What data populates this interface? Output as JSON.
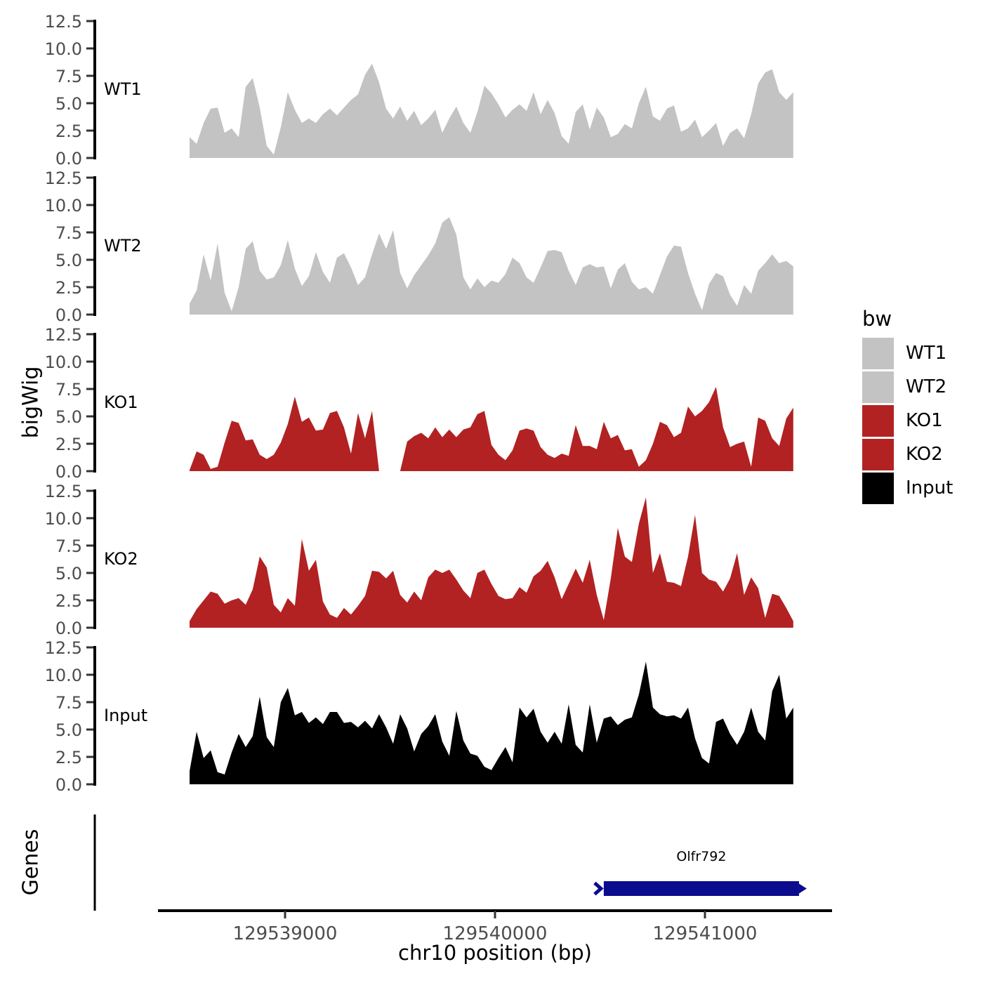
{
  "legend": {
    "title": "bw",
    "items": [
      {
        "label": "WT1",
        "color": "#c3c3c3"
      },
      {
        "label": "WT2",
        "color": "#c3c3c3"
      },
      {
        "label": "KO1",
        "color": "#b22222"
      },
      {
        "label": "KO2",
        "color": "#b22222"
      },
      {
        "label": "Input",
        "color": "#000000"
      }
    ]
  },
  "chart_data": {
    "type": "area",
    "title": "",
    "xlabel": "chr10 position (bp)",
    "ylabel": "bigWig",
    "x_axis": {
      "ticks": [
        129539000,
        129540000,
        129541000
      ],
      "tick_labels": [
        "129539000",
        "129540000",
        "129541000"
      ],
      "range_bp": [
        129538400,
        129541610
      ]
    },
    "y_axis": {
      "ticks": [
        0,
        2.5,
        5,
        7.5,
        10,
        12.5
      ],
      "tick_labels": [
        "0.0",
        "2.5",
        "5.0",
        "7.5",
        "10.0",
        "12.5"
      ],
      "range": [
        0,
        12.5
      ]
    },
    "x_start_bp": 129538545,
    "x_step_bp": 33.44,
    "series": [
      {
        "name": "WT1",
        "color": "#c3c3c3",
        "values": [
          1.9,
          1.3,
          3.2,
          4.5,
          4.6,
          2.3,
          2.7,
          1.9,
          6.5,
          7.3,
          4.6,
          1.1,
          0.3,
          2.8,
          6.0,
          4.4,
          3.2,
          3.6,
          3.2,
          4.0,
          4.5,
          3.9,
          4.6,
          5.3,
          5.8,
          7.6,
          8.6,
          6.9,
          4.5,
          3.6,
          4.7,
          3.4,
          4.3,
          3.0,
          3.6,
          4.4,
          2.3,
          3.6,
          4.7,
          3.2,
          2.3,
          4.2,
          6.6,
          5.9,
          4.9,
          3.7,
          4.4,
          4.9,
          4.3,
          6.0,
          4.0,
          5.3,
          4.1,
          2.0,
          1.3,
          4.2,
          4.9,
          2.6,
          4.6,
          3.7,
          1.9,
          2.2,
          3.1,
          2.7,
          5.0,
          6.5,
          3.8,
          3.4,
          4.5,
          4.8,
          2.4,
          2.7,
          3.5,
          1.9,
          2.5,
          3.2,
          1.1,
          2.3,
          2.7,
          1.8,
          4.0,
          6.8,
          7.8,
          8.1,
          6.0,
          5.3,
          6.0
        ]
      },
      {
        "name": "WT2",
        "color": "#c3c3c3",
        "values": [
          1.0,
          2.2,
          5.5,
          3.1,
          6.5,
          2.0,
          0.3,
          2.5,
          6.0,
          6.7,
          4.0,
          3.2,
          3.4,
          4.5,
          6.8,
          4.2,
          2.6,
          3.5,
          5.7,
          3.9,
          2.9,
          5.2,
          5.6,
          4.3,
          2.7,
          3.4,
          5.5,
          7.4,
          6.0,
          7.7,
          3.8,
          2.4,
          3.6,
          4.5,
          5.4,
          6.5,
          8.4,
          8.9,
          7.3,
          3.4,
          2.3,
          3.3,
          2.5,
          3.1,
          2.9,
          3.7,
          5.2,
          4.7,
          3.4,
          2.9,
          4.3,
          5.8,
          5.9,
          5.7,
          4.0,
          2.7,
          4.3,
          4.6,
          4.3,
          4.4,
          2.4,
          4.1,
          4.7,
          3.0,
          2.3,
          2.5,
          1.9,
          3.6,
          5.3,
          6.3,
          6.2,
          3.8,
          1.9,
          0.4,
          2.8,
          3.8,
          3.5,
          1.8,
          0.8,
          2.7,
          1.9,
          4.0,
          4.7,
          5.5,
          4.7,
          4.9,
          4.4
        ]
      },
      {
        "name": "KO1",
        "color": "#b22222",
        "values": [
          0.1,
          1.8,
          1.5,
          0.2,
          0.4,
          2.6,
          4.6,
          4.4,
          2.8,
          2.9,
          1.5,
          1.1,
          1.5,
          2.6,
          4.3,
          6.8,
          4.5,
          4.9,
          3.7,
          3.8,
          5.3,
          5.5,
          4.0,
          1.6,
          5.3,
          3.0,
          5.5,
          0.0,
          0.0,
          0.0,
          0.0,
          2.7,
          3.2,
          3.5,
          3.0,
          4.0,
          3.1,
          3.8,
          3.1,
          3.8,
          4.0,
          5.2,
          5.5,
          2.4,
          1.5,
          1.0,
          1.9,
          3.7,
          3.9,
          3.7,
          2.2,
          1.5,
          1.2,
          1.6,
          1.4,
          4.2,
          2.3,
          2.3,
          2.0,
          4.5,
          3.0,
          3.3,
          1.9,
          2.0,
          0.4,
          1.0,
          2.5,
          4.5,
          4.2,
          3.1,
          3.5,
          5.9,
          5.0,
          5.5,
          6.3,
          7.7,
          4.0,
          2.2,
          2.5,
          2.7,
          0.4,
          4.9,
          4.6,
          3.0,
          2.3,
          4.8,
          5.8
        ]
      },
      {
        "name": "KO2",
        "color": "#b22222",
        "values": [
          0.6,
          1.7,
          2.5,
          3.3,
          3.1,
          2.2,
          2.5,
          2.7,
          2.1,
          3.5,
          6.5,
          5.5,
          2.1,
          1.4,
          2.7,
          2.0,
          8.1,
          5.2,
          6.2,
          2.4,
          1.2,
          0.9,
          1.8,
          1.2,
          2.0,
          2.9,
          5.2,
          5.1,
          4.5,
          5.2,
          3.0,
          2.3,
          3.3,
          2.5,
          4.6,
          5.3,
          5.0,
          5.3,
          4.4,
          3.4,
          2.7,
          5.0,
          5.3,
          4.0,
          2.9,
          2.6,
          2.7,
          3.7,
          3.2,
          4.7,
          5.2,
          6.1,
          4.6,
          2.6,
          4.0,
          5.4,
          4.1,
          6.2,
          3.0,
          0.7,
          4.5,
          9.1,
          6.5,
          6.0,
          9.5,
          11.9,
          5.0,
          6.8,
          4.2,
          4.1,
          3.8,
          6.5,
          10.3,
          5.0,
          4.4,
          4.2,
          3.3,
          4.5,
          6.8,
          3.0,
          4.6,
          3.6,
          0.9,
          3.1,
          2.9,
          1.8,
          0.6
        ]
      },
      {
        "name": "Input",
        "color": "#000000",
        "values": [
          1.2,
          4.8,
          2.4,
          3.1,
          1.1,
          0.9,
          2.9,
          4.6,
          3.4,
          4.4,
          8.0,
          4.3,
          3.4,
          7.5,
          8.8,
          6.3,
          6.6,
          5.6,
          6.1,
          5.5,
          6.6,
          6.6,
          5.6,
          5.7,
          5.2,
          5.8,
          5.1,
          6.4,
          5.2,
          3.7,
          6.4,
          5.1,
          3.0,
          4.6,
          5.3,
          6.4,
          3.9,
          2.6,
          6.7,
          4.0,
          2.8,
          2.6,
          1.6,
          1.3,
          2.4,
          3.4,
          2.0,
          7.0,
          6.1,
          6.9,
          4.8,
          3.8,
          4.8,
          3.7,
          7.3,
          3.6,
          2.9,
          7.3,
          3.8,
          6.0,
          6.2,
          5.4,
          5.9,
          6.1,
          8.2,
          11.2,
          7.0,
          6.4,
          6.2,
          6.3,
          6.0,
          7.0,
          4.2,
          2.4,
          1.9,
          5.7,
          6.0,
          4.6,
          3.6,
          4.8,
          7.0,
          4.8,
          4.0,
          8.5,
          10.0,
          6.0,
          7.0
        ]
      }
    ],
    "gene_track": {
      "label": "Genes",
      "gene": {
        "name": "Olfr792",
        "start_bp": 129540518,
        "end_bp": 129541448,
        "strand": "+",
        "color": "#0b0b8d"
      }
    }
  }
}
